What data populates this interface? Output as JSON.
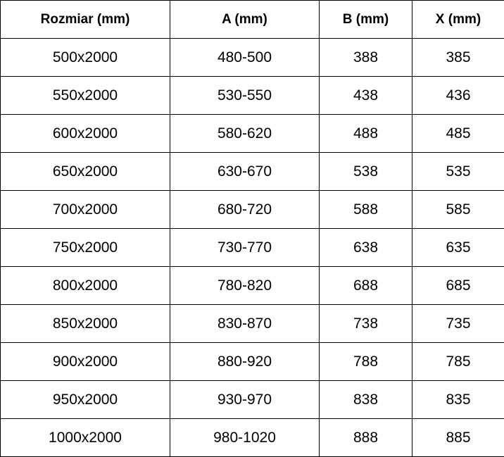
{
  "table": {
    "headers": [
      "Rozmiar (mm)",
      "A (mm)",
      "B (mm)",
      "X (mm)"
    ],
    "rows": [
      [
        "500x2000",
        "480-500",
        "388",
        "385"
      ],
      [
        "550x2000",
        "530-550",
        "438",
        "436"
      ],
      [
        "600x2000",
        "580-620",
        "488",
        "485"
      ],
      [
        "650x2000",
        "630-670",
        "538",
        "535"
      ],
      [
        "700x2000",
        "680-720",
        "588",
        "585"
      ],
      [
        "750x2000",
        "730-770",
        "638",
        "635"
      ],
      [
        "800x2000",
        "780-820",
        "688",
        "685"
      ],
      [
        "850x2000",
        "830-870",
        "738",
        "735"
      ],
      [
        "900x2000",
        "880-920",
        "788",
        "785"
      ],
      [
        "950x2000",
        "930-970",
        "838",
        "835"
      ],
      [
        "1000x2000",
        "980-1020",
        "888",
        "885"
      ]
    ]
  }
}
